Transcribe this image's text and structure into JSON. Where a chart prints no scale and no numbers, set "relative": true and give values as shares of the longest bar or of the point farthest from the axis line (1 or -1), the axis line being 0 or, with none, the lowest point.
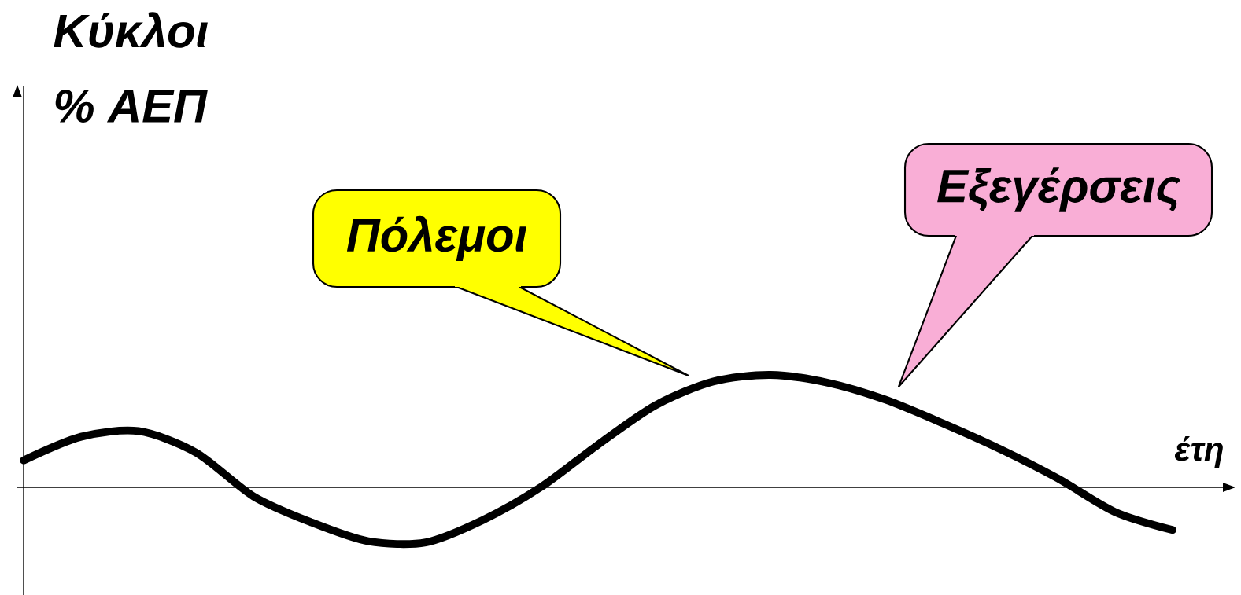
{
  "chart_data": {
    "type": "line",
    "relative": true,
    "title": "Κύκλοι",
    "xlabel": "έτη",
    "categories": [
      null,
      null,
      null,
      null,
      null,
      null,
      null,
      null,
      null,
      null,
      null,
      null,
      null,
      null,
      null,
      null,
      null,
      null,
      null,
      null,
      null
    ],
    "values": [
      0.24,
      0.45,
      0.5,
      0.31,
      -0.08,
      -0.31,
      -0.48,
      -0.49,
      -0.29,
      0.0,
      0.38,
      0.73,
      0.94,
      1.0,
      0.93,
      0.78,
      0.57,
      0.34,
      0.08,
      -0.22,
      -0.38
    ],
    "color": "#000000",
    "annotations": [
      "% ΑΕΠ",
      "Πόλεμοι",
      "Εξεγέρσεις"
    ]
  }
}
